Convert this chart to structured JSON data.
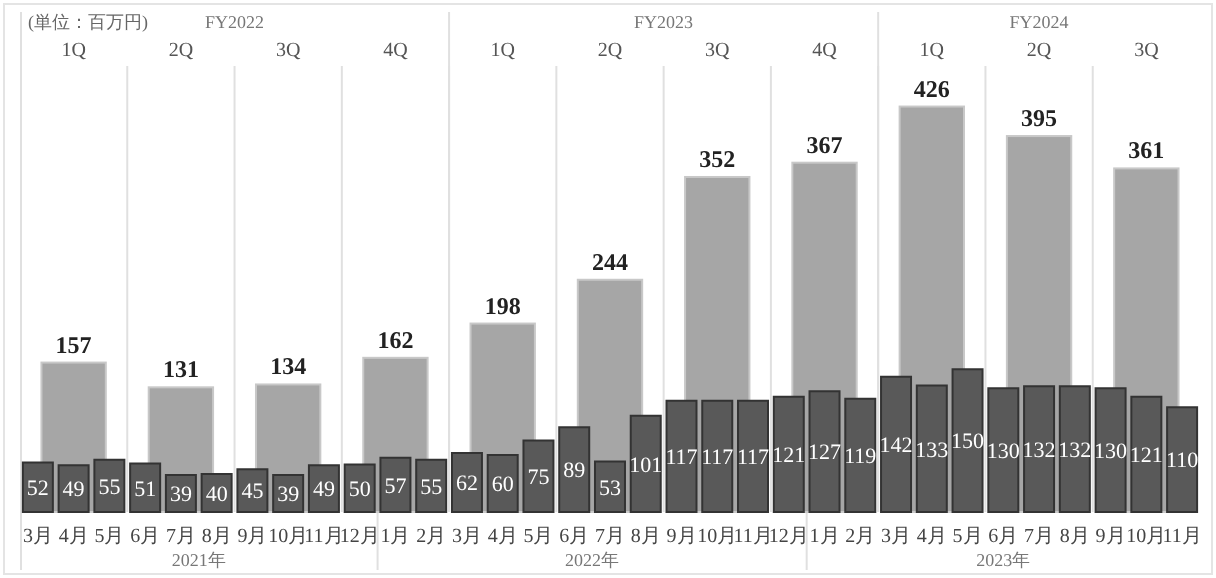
{
  "chart_data": {
    "type": "bar",
    "annotations": [
      "(単位：百万円)",
      "FY2022",
      "FY2023",
      "FY2024",
      "1Q",
      "2Q",
      "3Q",
      "4Q",
      "1Q",
      "2Q",
      "3Q",
      "4Q",
      "1Q",
      "2Q",
      "3Q",
      "2021年",
      "2022年",
      "2023年"
    ],
    "categories": [
      "3月",
      "4月",
      "5月",
      "6月",
      "7月",
      "8月",
      "9月",
      "10月",
      "11月",
      "12月",
      "1月",
      "2月",
      "3月",
      "4月",
      "5月",
      "6月",
      "7月",
      "8月",
      "9月",
      "10月",
      "11月",
      "12月",
      "1月",
      "2月",
      "3月",
      "4月",
      "5月",
      "6月",
      "7月",
      "8月",
      "9月",
      "10月",
      "11月"
    ],
    "series": [
      {
        "color": "#a6a6a6",
        "values": [
          null,
          157,
          null,
          null,
          131,
          null,
          null,
          134,
          null,
          null,
          162,
          null,
          null,
          198,
          null,
          null,
          244,
          null,
          null,
          352,
          null,
          null,
          367,
          null,
          null,
          426,
          null,
          null,
          395,
          null,
          null,
          361,
          null
        ]
      },
      {
        "color": "#595959",
        "values": [
          52,
          49,
          55,
          51,
          39,
          40,
          45,
          39,
          49,
          50,
          57,
          55,
          62,
          60,
          75,
          89,
          53,
          101,
          117,
          117,
          117,
          121,
          127,
          119,
          142,
          133,
          150,
          130,
          132,
          132,
          130,
          121,
          110
        ]
      }
    ],
    "data_labels": true
  }
}
